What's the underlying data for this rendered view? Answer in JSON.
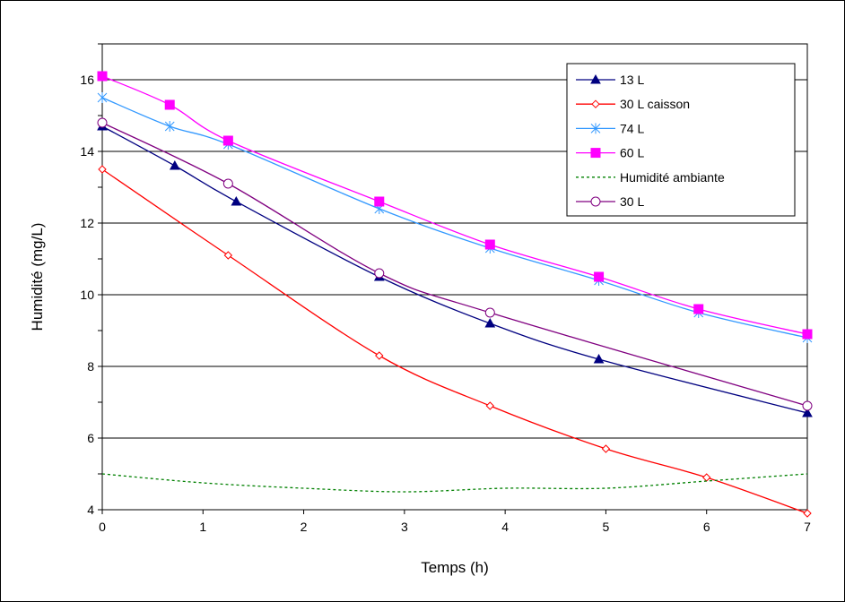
{
  "chart_data": {
    "type": "line",
    "xlabel": "Temps (h)",
    "ylabel": "Humidité (mg/L)",
    "xlim": [
      0,
      7
    ],
    "ylim": [
      4,
      17
    ],
    "x_ticks": [
      "0",
      "1",
      "2",
      "3",
      "4",
      "5",
      "6",
      "7"
    ],
    "y_ticks": [
      "4",
      "6",
      "8",
      "10",
      "12",
      "14",
      "16"
    ],
    "grid": "horizontal",
    "legend_position": "top-right",
    "series": [
      {
        "name": "13 L",
        "color": "#000080",
        "marker": "triangle",
        "dash": "solid",
        "x": [
          0,
          0.72,
          1.33,
          2.75,
          3.85,
          4.93,
          7
        ],
        "y": [
          14.7,
          13.6,
          12.6,
          10.5,
          9.2,
          8.2,
          6.7
        ]
      },
      {
        "name": "30 L caisson",
        "color": "#ff0000",
        "marker": "diamond-open",
        "dash": "solid",
        "x": [
          0,
          1.0,
          1.25,
          2.75,
          3.85,
          5.0,
          6.0,
          7.0
        ],
        "y": [
          13.5,
          null,
          11.1,
          8.3,
          6.9,
          5.7,
          4.9,
          3.9
        ]
      },
      {
        "name": "74 L",
        "color": "#3399ff",
        "marker": "asterisk",
        "dash": "solid",
        "x": [
          0,
          0.67,
          1.25,
          2.75,
          3.85,
          4.93,
          5.92,
          7
        ],
        "y": [
          15.5,
          14.7,
          14.2,
          12.4,
          11.3,
          10.4,
          9.5,
          8.8
        ]
      },
      {
        "name": "60 L",
        "color": "#ff00ff",
        "marker": "square",
        "dash": "solid",
        "x": [
          0,
          0.67,
          1.25,
          2.75,
          3.85,
          4.93,
          5.92,
          7
        ],
        "y": [
          16.1,
          15.3,
          14.3,
          12.6,
          11.4,
          10.5,
          9.6,
          8.9
        ]
      },
      {
        "name": "Humidité ambiante",
        "color": "#008000",
        "marker": "none",
        "dash": "dotted",
        "x": [
          0,
          1,
          2,
          3,
          4,
          5,
          6,
          7
        ],
        "y": [
          5.0,
          4.75,
          4.6,
          4.5,
          4.6,
          4.6,
          4.8,
          5.0
        ]
      },
      {
        "name": "30 L",
        "color": "#800080",
        "marker": "circle-open",
        "dash": "solid",
        "x": [
          0,
          1.25,
          2.75,
          3.85,
          7
        ],
        "y": [
          14.8,
          13.1,
          10.6,
          9.5,
          6.9
        ]
      }
    ]
  }
}
